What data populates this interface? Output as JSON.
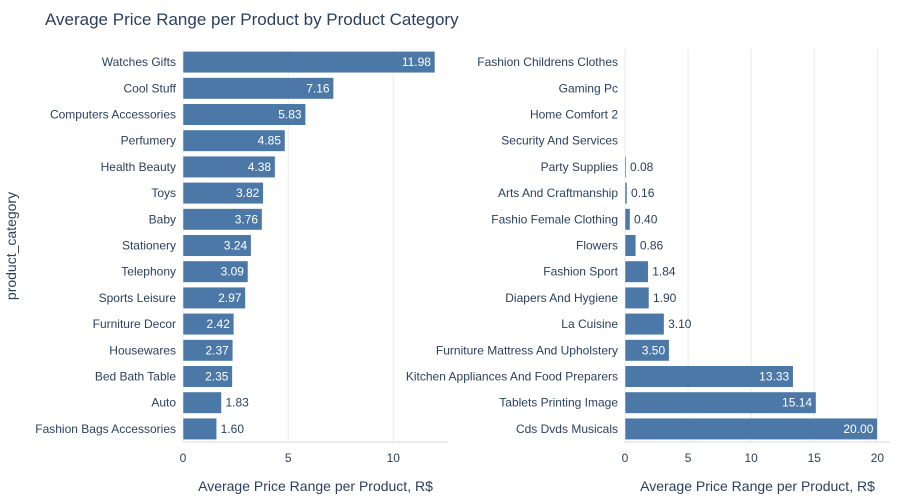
{
  "chart_data": {
    "type": "bar",
    "orientation": "horizontal",
    "title": "Average Price Range per Product by Product Category",
    "ylabel": "product_category",
    "colors": {
      "bar": "#4c78a8",
      "grid": "#e6e9ef",
      "text": "#2a3f5f",
      "inside_label": "#ffffff"
    },
    "panels": [
      {
        "xlabel": "Average Price Range per Product, R$",
        "xlim": [
          0,
          12.6
        ],
        "xticks": [
          0,
          5,
          10
        ],
        "categories": [
          "Watches Gifts",
          "Cool Stuff",
          "Computers Accessories",
          "Perfumery",
          "Health Beauty",
          "Toys",
          "Baby",
          "Stationery",
          "Telephony",
          "Sports Leisure",
          "Furniture Decor",
          "Housewares",
          "Bed Bath Table",
          "Auto",
          "Fashion Bags Accessories"
        ],
        "values": [
          11.98,
          7.16,
          5.83,
          4.85,
          4.38,
          3.82,
          3.76,
          3.24,
          3.09,
          2.97,
          2.42,
          2.37,
          2.35,
          1.83,
          1.6
        ],
        "labels": [
          "11.98",
          "7.16",
          "5.83",
          "4.85",
          "4.38",
          "3.82",
          "3.76",
          "3.24",
          "3.09",
          "2.97",
          "2.42",
          "2.37",
          "2.35",
          "1.83",
          "1.60"
        ]
      },
      {
        "xlabel": "Average Price Range per Product, R$",
        "xlim": [
          0,
          21
        ],
        "xticks": [
          0,
          5,
          10,
          15,
          20
        ],
        "categories": [
          "Fashion Childrens Clothes",
          "Gaming Pc",
          "Home Comfort 2",
          "Security And Services",
          "Party Supplies",
          "Arts And Craftmanship",
          "Fashio Female Clothing",
          "Flowers",
          "Fashion Sport",
          "Diapers And Hygiene",
          "La Cuisine",
          "Furniture Mattress And Upholstery",
          "Kitchen Appliances And Food Preparers",
          "Tablets Printing Image",
          "Cds Dvds Musicals"
        ],
        "values": [
          0,
          0,
          0,
          0,
          0.08,
          0.16,
          0.4,
          0.86,
          1.84,
          1.9,
          3.1,
          3.5,
          13.33,
          15.14,
          20.0
        ],
        "labels": [
          "",
          "",
          "",
          "",
          "0.08",
          "0.16",
          "0.40",
          "0.86",
          "1.84",
          "1.90",
          "3.10",
          "3.50",
          "13.33",
          "15.14",
          "20.00"
        ]
      }
    ]
  }
}
